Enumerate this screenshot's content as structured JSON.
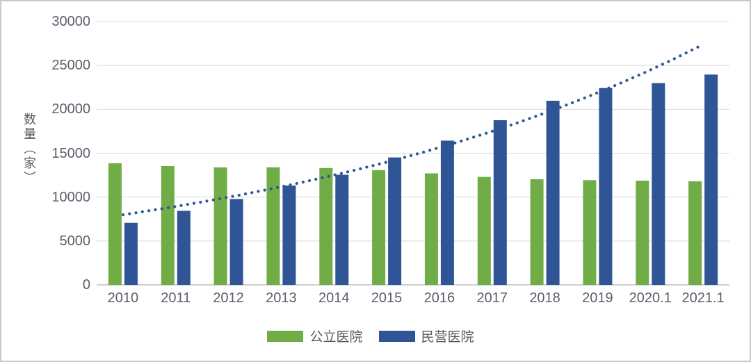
{
  "chart_data": {
    "type": "bar",
    "title": "",
    "xlabel": "",
    "ylabel": "数量（家）",
    "ylim": [
      0,
      30000
    ],
    "y_tick_interval": 5000,
    "y_ticks": [
      "0",
      "5000",
      "10000",
      "15000",
      "20000",
      "25000",
      "30000"
    ],
    "grid": true,
    "legend_position": "bottom",
    "categories": [
      "2010",
      "2011",
      "2012",
      "2013",
      "2014",
      "2015",
      "2016",
      "2017",
      "2018",
      "2019",
      "2020.1",
      "2021.1"
    ],
    "series": [
      {
        "name": "公立医院",
        "key": "public-hospitals",
        "color": "#70AD47",
        "values": [
          13850,
          13539,
          13384,
          13396,
          13314,
          13069,
          12708,
          12297,
          12032,
          11930,
          11871,
          11804
        ]
      },
      {
        "name": "民营医院",
        "key": "private-hospitals",
        "color": "#2F5597",
        "values": [
          7068,
          8440,
          9786,
          11313,
          12546,
          14518,
          16432,
          18759,
          20977,
          22424,
          22983,
          23964
        ]
      }
    ],
    "trendline": {
      "applies_to": "民营医院",
      "type": "exponential",
      "style": "dotted",
      "color": "#2F5597",
      "start_value": 7990,
      "end_value": 27390
    },
    "colors": {
      "gridline": "#d9d9d9",
      "axis_line": "#bfbfbf",
      "tick_text": "#595f6b",
      "border": "#c9c9c9"
    }
  }
}
